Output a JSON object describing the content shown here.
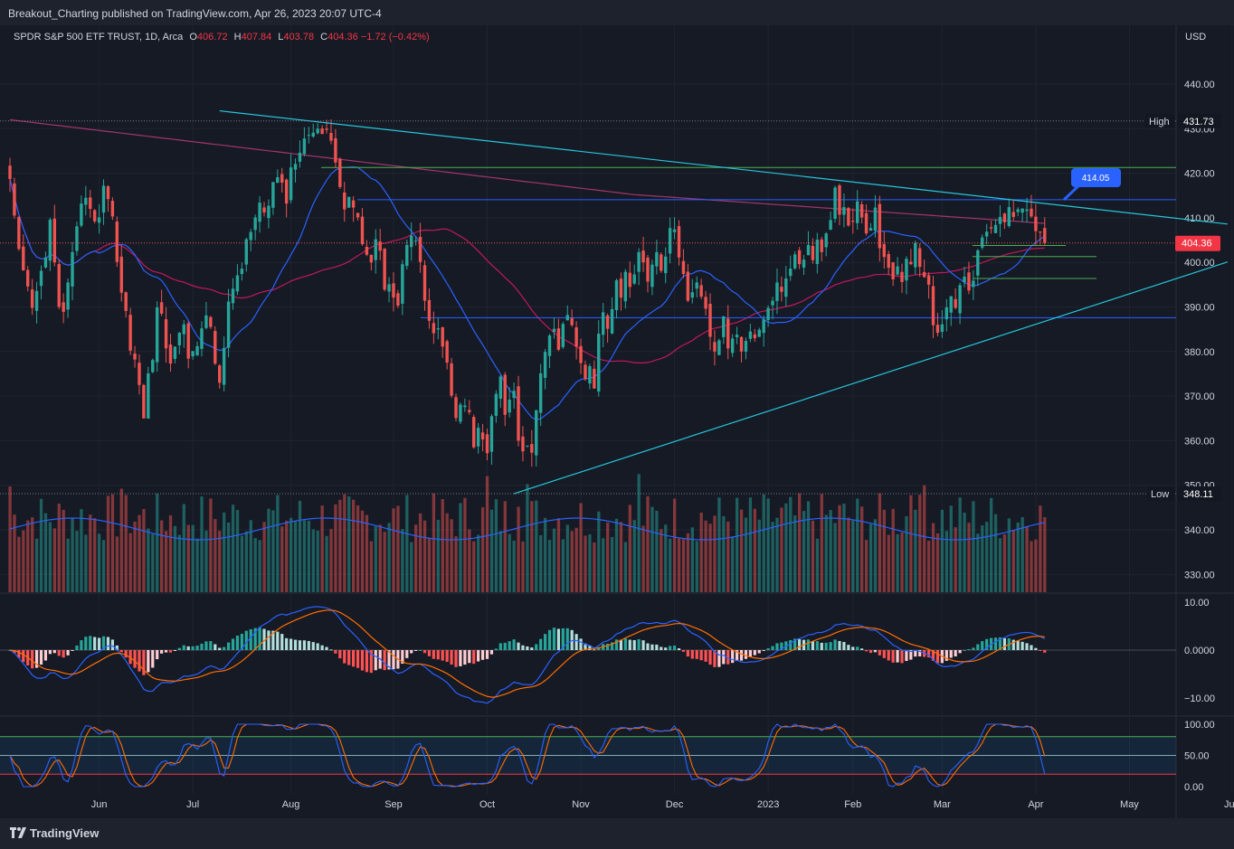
{
  "header": {
    "published": "Breakout_Charting published on TradingView.com, Apr 26, 2023 20:07 UTC-4"
  },
  "legend": {
    "symbol": "SPDR S&P 500 ETF TRUST, 1D, Arca",
    "o_label": "O",
    "o_value": "406.72",
    "h_label": "H",
    "h_value": "407.84",
    "l_label": "L",
    "l_value": "403.78",
    "c_label": "C",
    "c_value": "404.36",
    "change": "−1.72 (−0.42%)"
  },
  "currency": "USD",
  "footer": {
    "brand": "TradingView"
  },
  "colors": {
    "background": "#161a25",
    "up": "#26a69a",
    "down": "#ef5350",
    "sma20": "#2962ff",
    "sma50": "#c2185b",
    "sma200": "#a4356b",
    "trendline": "#26c6da",
    "support": "#4caf50",
    "level": "#2962ff"
  },
  "chart_data": {
    "type": "candlestick",
    "price_axis": {
      "ticks": [
        "440.00",
        "430.00",
        "420.00",
        "410.00",
        "400.00",
        "390.00",
        "380.00",
        "370.00",
        "360.00",
        "350.00",
        "340.00",
        "330.00"
      ],
      "tick_values": [
        440,
        430,
        420,
        410,
        400,
        390,
        380,
        370,
        360,
        350,
        340,
        330
      ]
    },
    "x_axis": {
      "labels": [
        "Jun",
        "Jul",
        "Aug",
        "Sep",
        "Oct",
        "Nov",
        "Dec",
        "2023",
        "Feb",
        "Mar",
        "Apr",
        "May",
        "Jun"
      ],
      "label_days": [
        20,
        41,
        63,
        86,
        107,
        128,
        149,
        170,
        189,
        209,
        230,
        251,
        274
      ]
    },
    "markers": {
      "high": {
        "label": "High",
        "value": "431.73"
      },
      "low": {
        "label": "Low",
        "value": "348.11"
      },
      "last": {
        "value": "404.36"
      },
      "callout": {
        "value": "414.05"
      }
    },
    "horizontal_levels": [
      {
        "kind": "resistance",
        "price": 421.3,
        "color": "#4caf50"
      },
      {
        "kind": "level",
        "price": 414.05,
        "color": "#2962ff"
      },
      {
        "kind": "level",
        "price": 387.6,
        "color": "#2962ff"
      },
      {
        "kind": "support",
        "price": 403.8,
        "color": "#4caf50"
      },
      {
        "kind": "support",
        "price": 401.3,
        "color": "#4caf50"
      },
      {
        "kind": "support",
        "price": 396.4,
        "color": "#4caf50"
      }
    ],
    "trendlines": [
      {
        "name": "descending",
        "from": [
          47,
          434.0
        ],
        "to": [
          273,
          408.6
        ]
      },
      {
        "name": "ascending",
        "from": [
          113,
          348.1
        ],
        "to": [
          273,
          400.1
        ]
      }
    ],
    "closes": [
      418.7,
      410.5,
      403.0,
      398.2,
      394.6,
      389.8,
      393.6,
      398.1,
      401.1,
      409.6,
      400.0,
      390.0,
      388.9,
      395.5,
      402.3,
      408.1,
      413.2,
      414.5,
      412.0,
      409.2,
      410.1,
      417.2,
      414.2,
      410.3,
      400.1,
      393.2,
      389.1,
      380.2,
      378.2,
      372.5,
      365.0,
      375.1,
      378.1,
      389.9,
      388.5,
      380.7,
      377.3,
      381.1,
      384.2,
      386.1,
      378.4,
      380.1,
      381.2,
      385.2,
      388.1,
      385.5,
      377.3,
      373.0,
      380.8,
      391.2,
      394.1,
      397.1,
      398.6,
      405.2,
      406.8,
      410.1,
      413.4,
      411.2,
      412.7,
      418.0,
      419.1,
      417.9,
      413.2,
      421.3,
      422.1,
      424.6,
      427.8,
      428.6,
      429.1,
      430.0,
      428.8,
      429.7,
      427.3,
      422.4,
      416.9,
      411.9,
      414.7,
      412.3,
      410.1,
      404.1,
      401.7,
      400.0,
      405.2,
      402.6,
      393.9,
      395.1,
      392.1,
      390.3,
      399.6,
      403.9,
      406.0,
      404.9,
      400.1,
      391.4,
      386.9,
      384.1,
      385.2,
      381.1,
      377.5,
      370.1,
      365.1,
      368.1,
      367.9,
      366.4,
      358.5,
      362.9,
      360.3,
      357.2,
      365.5,
      370.5,
      374.4,
      365.8,
      369.2,
      371.2,
      360.0,
      357.6,
      358.9,
      357.3,
      366.8,
      375.1,
      379.9,
      383.6,
      385.1,
      380.4,
      386.2,
      388.2,
      385.9,
      381.1,
      377.4,
      373.8,
      376.7,
      371.7,
      384.0,
      388.8,
      385.1,
      389.5,
      396.0,
      392.1,
      397.9,
      394.5,
      397.3,
      402.3,
      400.0,
      395.7,
      399.5,
      402.3,
      398.1,
      401.3,
      407.7,
      407.4,
      401.1,
      397.4,
      391.4,
      393.3,
      395.5,
      392.3,
      389.6,
      383.3,
      380.0,
      382.5,
      387.9,
      380.7,
      382.9,
      383.8,
      380.0,
      382.4,
      384.5,
      383.0,
      384.9,
      387.2,
      389.8,
      391.4,
      395.5,
      393.4,
      396.4,
      398.6,
      401.8,
      399.6,
      400.6,
      403.9,
      400.5,
      405.1,
      402.3,
      406.5,
      409.5,
      416.8,
      410.7,
      412.4,
      408.3,
      409.1,
      413.7,
      410.1,
      406.5,
      407.7,
      412.3,
      403.2,
      401.2,
      398.8,
      396.2,
      399.1,
      395.6,
      400.8,
      399.6,
      404.4,
      399.0,
      396.7,
      395.0,
      385.9,
      384.2,
      386.1,
      389.9,
      392.4,
      389.8,
      394.9,
      396.8,
      393.7,
      395.9,
      402.7,
      405.6,
      406.9,
      407.6,
      408.4,
      410.2,
      409.0,
      412.4,
      410.2,
      411.9,
      412.1,
      411.9,
      410.3,
      407.0,
      406.7,
      404.4
    ],
    "macd": {
      "axis_ticks": [
        "10.00",
        "0.0000",
        "−10.00"
      ],
      "axis_values": [
        10,
        0,
        -10
      ]
    },
    "stoch_rsi": {
      "axis_ticks": [
        "100.00",
        "50.00",
        "0.00"
      ],
      "axis_values": [
        100,
        50,
        0
      ],
      "bands": [
        80,
        50,
        20
      ]
    }
  }
}
